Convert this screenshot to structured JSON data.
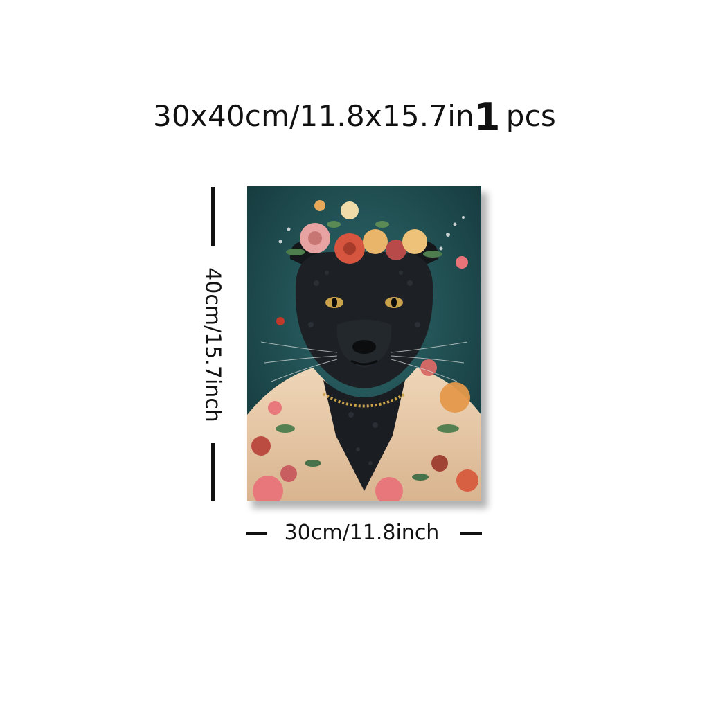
{
  "title": {
    "size": "30x40cm/11.8x15.7in",
    "quantity": "1",
    "unit": "pcs"
  },
  "height_label": "40cm/15.7inch",
  "width_label": "30cm/11.8inch",
  "canvas": {
    "subject": "black panther in flower crown and floral kimono",
    "colors": {
      "background": "#1f4e52",
      "fur": "#1b1e22",
      "robe": "#e9c9a8",
      "rose": "#e8747a",
      "eye": "#c9a24a"
    }
  }
}
